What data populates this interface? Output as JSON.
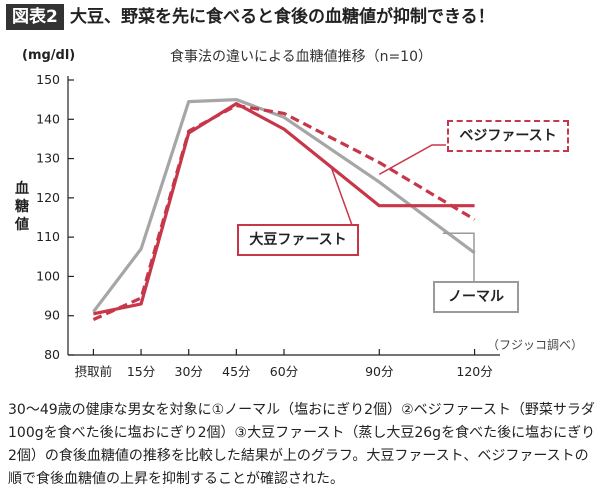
{
  "header": {
    "figure_label": "図表2",
    "headline": "大豆、野菜を先に食べると食後の血糖値が抑制できる！"
  },
  "chart_data": {
    "type": "line",
    "title": "食事法の違いによる血糖値推移（n=10）",
    "unit": "(mg/dl)",
    "ylabel": "血糖値",
    "source": "（フジッコ調べ）",
    "x": [
      0,
      15,
      30,
      45,
      60,
      90,
      120
    ],
    "x_tick_labels": [
      "摂取前",
      "15分",
      "30分",
      "45分",
      "60分",
      "90分",
      "120分"
    ],
    "y_ticks": [
      80,
      90,
      100,
      110,
      120,
      130,
      140,
      150
    ],
    "ylim": [
      80,
      150
    ],
    "xlim": [
      -8,
      128
    ],
    "grid": false,
    "series": [
      {
        "name": "ノーマル",
        "color": "#a6a6a6",
        "style": "solid",
        "x": [
          0,
          15,
          30,
          45,
          60,
          90,
          120
        ],
        "values": [
          91,
          107,
          144.5,
          145,
          140.5,
          124,
          106
        ]
      },
      {
        "name": "ベジファースト",
        "color": "#c8364a",
        "style": "dashed",
        "x": [
          0,
          15,
          30,
          45,
          60,
          90,
          120
        ],
        "values": [
          89,
          94.5,
          137,
          143.5,
          141.5,
          129,
          114.5
        ]
      },
      {
        "name": "大豆ファースト",
        "color": "#c8364a",
        "style": "solid",
        "x": [
          0,
          15,
          30,
          45,
          60,
          90,
          120
        ],
        "values": [
          90.5,
          93,
          136.5,
          144,
          137.5,
          118,
          118
        ]
      }
    ]
  },
  "caption": "30〜49歳の健康な男女を対象に①ノーマル（塩おにぎり2個）②ベジファースト（野菜サラダ100gを食べた後に塩おにぎり2個）③大豆ファースト（蒸し大豆26gを食べた後に塩おにぎり2個）の食後血糖値の推移を比較した結果が上のグラフ。大豆ファースト、ベジファーストの順で食後血糖値の上昇を抑制することが確認された。"
}
